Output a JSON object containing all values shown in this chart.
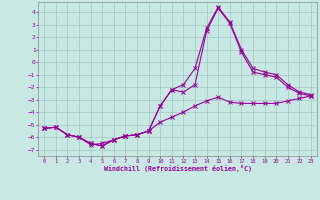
{
  "xlabel": "Windchill (Refroidissement éolien,°C)",
  "background_color": "#c8e8e4",
  "grid_color": "#a0c8c4",
  "line_color": "#990099",
  "xlim": [
    -0.5,
    23.5
  ],
  "ylim": [
    -7.5,
    4.8
  ],
  "yticks": [
    -7,
    -6,
    -5,
    -4,
    -3,
    -2,
    -1,
    0,
    1,
    2,
    3,
    4
  ],
  "xticks": [
    0,
    1,
    2,
    3,
    4,
    5,
    6,
    7,
    8,
    9,
    10,
    11,
    12,
    13,
    14,
    15,
    16,
    17,
    18,
    19,
    20,
    21,
    22,
    23
  ],
  "line1_x": [
    0,
    1,
    2,
    3,
    4,
    5,
    6,
    7,
    8,
    9,
    10,
    11,
    12,
    13,
    14,
    15,
    16,
    17,
    18,
    19,
    20,
    21,
    22,
    23
  ],
  "line1_y": [
    -5.3,
    -5.2,
    -5.8,
    -6.0,
    -6.6,
    -6.5,
    -6.2,
    -5.9,
    -5.8,
    -5.5,
    -4.8,
    -4.4,
    -4.0,
    -3.5,
    -3.1,
    -2.8,
    -3.2,
    -3.3,
    -3.3,
    -3.3,
    -3.3,
    -3.1,
    -2.9,
    -2.7
  ],
  "line2_x": [
    0,
    1,
    2,
    3,
    4,
    5,
    6,
    7,
    8,
    9,
    10,
    11,
    12,
    13,
    14,
    15,
    16,
    17,
    18,
    19,
    20,
    21,
    22,
    23
  ],
  "line2_y": [
    -5.3,
    -5.2,
    -5.8,
    -6.0,
    -6.5,
    -6.7,
    -6.2,
    -5.9,
    -5.8,
    -5.5,
    -3.5,
    -2.2,
    -2.4,
    -1.8,
    2.5,
    4.3,
    3.1,
    0.8,
    -0.8,
    -1.0,
    -1.2,
    -2.0,
    -2.5,
    -2.7
  ],
  "line3_x": [
    0,
    1,
    2,
    3,
    4,
    5,
    6,
    7,
    8,
    9,
    10,
    11,
    12,
    13,
    14,
    15,
    16,
    17,
    18,
    19,
    20,
    21,
    22,
    23
  ],
  "line3_y": [
    -5.3,
    -5.2,
    -5.8,
    -6.0,
    -6.5,
    -6.7,
    -6.2,
    -5.9,
    -5.8,
    -5.5,
    -3.5,
    -2.2,
    -1.8,
    -0.5,
    2.7,
    4.4,
    3.2,
    1.0,
    -0.5,
    -0.8,
    -1.0,
    -1.8,
    -2.4,
    -2.6
  ]
}
